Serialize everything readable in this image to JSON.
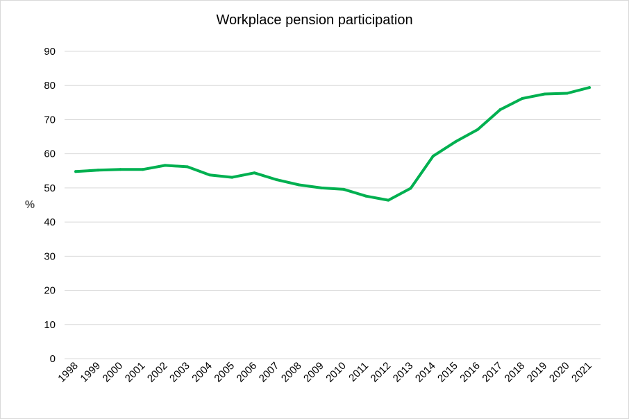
{
  "chart_data": {
    "type": "line",
    "title": "Workplace pension participation",
    "ylabel": "%",
    "xlabel": "",
    "ylim": [
      0,
      90
    ],
    "yticks": [
      0,
      10,
      20,
      30,
      40,
      50,
      60,
      70,
      80,
      90
    ],
    "grid": true,
    "legend": "none",
    "line_color": "#00b050",
    "categories": [
      "1998",
      "1999",
      "2000",
      "2001",
      "2002",
      "2003",
      "2004",
      "2005",
      "2006",
      "2007",
      "2008",
      "2009",
      "2010",
      "2011",
      "2012",
      "2013",
      "2014",
      "2015",
      "2016",
      "2017",
      "2018",
      "2019",
      "2020",
      "2021"
    ],
    "series": [
      {
        "values": [
          54.8,
          55.2,
          55.4,
          55.4,
          56.6,
          56.2,
          53.8,
          53.1,
          54.4,
          52.4,
          50.9,
          50.0,
          49.6,
          47.6,
          46.4,
          49.9,
          59.3,
          63.5,
          67.1,
          72.9,
          76.2,
          77.5,
          77.7,
          79.4
        ]
      }
    ]
  }
}
